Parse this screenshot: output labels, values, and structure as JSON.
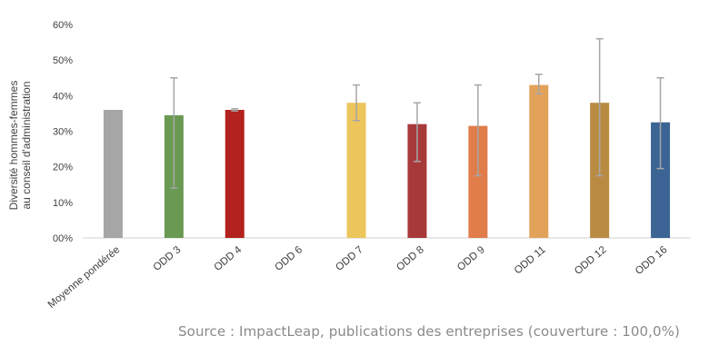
{
  "chart_data": {
    "type": "bar",
    "title": "",
    "ylabel": "Diversité hommes-femmes\nau conseil d'administration",
    "ylabel_lines": [
      "Diversité hommes-femmes",
      "au conseil d'administration"
    ],
    "xlabel": "",
    "ylim": [
      0,
      60
    ],
    "yticks": [
      "00%",
      "10%",
      "20%",
      "30%",
      "40%",
      "50%",
      "60%"
    ],
    "grid": false,
    "legend": "none",
    "categories": [
      "Moyenne pondérée",
      "ODD 3",
      "ODD 4",
      "ODD 6",
      "ODD 7",
      "ODD 8",
      "ODD 9",
      "ODD 11",
      "ODD 12",
      "ODD 16"
    ],
    "values": [
      36,
      34.5,
      36,
      null,
      38,
      32,
      31.5,
      43,
      38,
      32.5
    ],
    "error_low": [
      null,
      14,
      35.7,
      null,
      33,
      21.5,
      17.5,
      40.5,
      17.5,
      19.5
    ],
    "error_high": [
      null,
      45,
      36.3,
      null,
      43,
      38,
      43,
      46,
      56,
      45
    ],
    "colors": [
      "#a6a6a6",
      "#6a9a52",
      "#b3221e",
      "#7aa7cf",
      "#ecc55c",
      "#a8393a",
      "#e07d4b",
      "#e3a25a",
      "#b98b42",
      "#3b6494"
    ],
    "error_color": "#a6a6a6"
  },
  "source": "Source : ImpactLeap, publications des entreprises (couverture : 100,0%)"
}
